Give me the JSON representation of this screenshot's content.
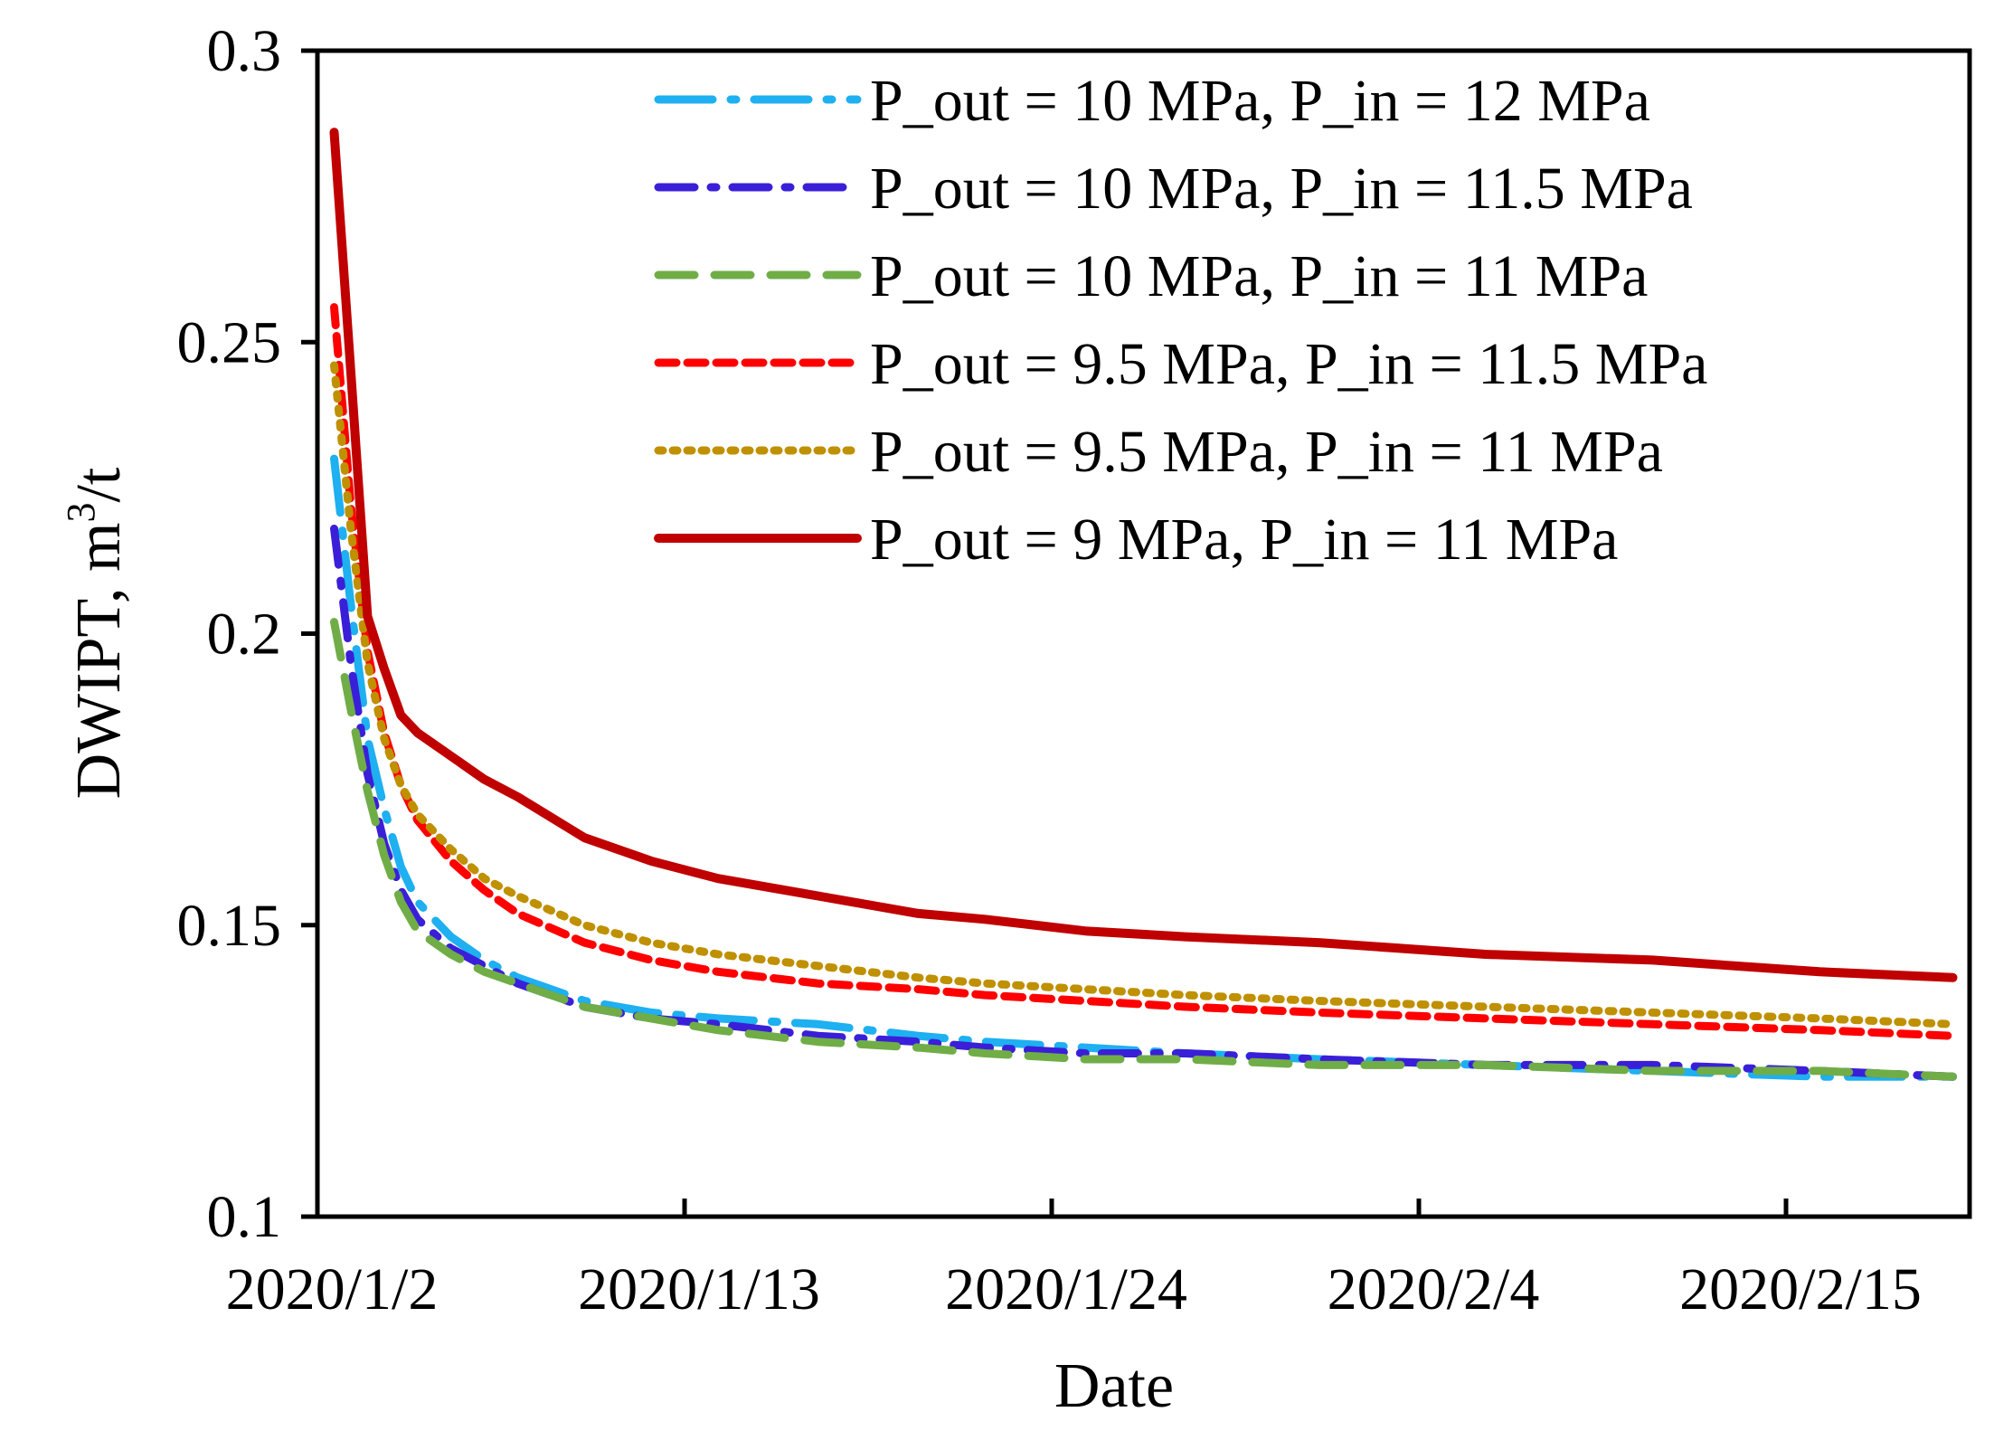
{
  "chart_data": {
    "type": "line",
    "title": "",
    "xlabel": "Date",
    "ylabel": "DWIPT, m",
    "ylabel_sup": "3",
    "ylabel_suffix": "/t",
    "ylim": [
      0.1,
      0.3
    ],
    "yticks": [
      "0.1",
      "0.15",
      "0.2",
      "0.25",
      "0.3"
    ],
    "xlim": [
      0,
      49.5
    ],
    "xticks": [
      {
        "day": 0,
        "label": "2020/1/2"
      },
      {
        "day": 11,
        "label": "2020/1/13"
      },
      {
        "day": 22,
        "label": "2020/1/24"
      },
      {
        "day": 33,
        "label": "2020/2/4"
      },
      {
        "day": 44,
        "label": "2020/2/15"
      }
    ],
    "grid": false,
    "legend_position": "top-right",
    "x": [
      0.5,
      1,
      1.5,
      2,
      2.5,
      3,
      4,
      5,
      6,
      8,
      10,
      12,
      15,
      18,
      20,
      23,
      26,
      30,
      35,
      40,
      45,
      49
    ],
    "series": [
      {
        "name": "P_out = 10 MPa, P_in = 12 MPa",
        "color": "#1EB0F0",
        "dash": "dashdot-long",
        "values": [
          0.23,
          0.205,
          0.182,
          0.17,
          0.16,
          0.154,
          0.148,
          0.144,
          0.141,
          0.137,
          0.135,
          0.134,
          0.133,
          0.131,
          0.13,
          0.129,
          0.128,
          0.127,
          0.126,
          0.125,
          0.124,
          0.124
        ]
      },
      {
        "name": "P_out = 10 MPa, P_in = 11.5 MPa",
        "color": "#3A1FD8",
        "dash": "dashdot",
        "values": [
          0.218,
          0.195,
          0.176,
          0.164,
          0.156,
          0.151,
          0.146,
          0.143,
          0.14,
          0.136,
          0.134,
          0.133,
          0.131,
          0.13,
          0.129,
          0.128,
          0.128,
          0.127,
          0.126,
          0.126,
          0.125,
          0.124
        ]
      },
      {
        "name": "P_out = 10 MPa, P_in = 11 MPa",
        "color": "#70AD47",
        "dash": "dash",
        "values": [
          0.202,
          0.187,
          0.173,
          0.162,
          0.154,
          0.149,
          0.145,
          0.142,
          0.14,
          0.136,
          0.134,
          0.132,
          0.13,
          0.129,
          0.128,
          0.127,
          0.127,
          0.126,
          0.126,
          0.125,
          0.125,
          0.124
        ]
      },
      {
        "name": "P_out = 9.5 MPa, P_in = 11.5 MPa",
        "color": "#FF0000",
        "dash": "shortdash",
        "values": [
          0.256,
          0.222,
          0.197,
          0.183,
          0.174,
          0.168,
          0.161,
          0.156,
          0.152,
          0.147,
          0.144,
          0.142,
          0.14,
          0.139,
          0.138,
          0.137,
          0.136,
          0.135,
          0.134,
          0.133,
          0.132,
          0.131
        ]
      },
      {
        "name": "P_out = 9.5 MPa, P_in = 11 MPa",
        "color": "#BF9000",
        "dash": "dot",
        "values": [
          0.246,
          0.218,
          0.195,
          0.182,
          0.174,
          0.169,
          0.163,
          0.158,
          0.155,
          0.15,
          0.147,
          0.145,
          0.143,
          0.141,
          0.14,
          0.139,
          0.138,
          0.137,
          0.136,
          0.135,
          0.134,
          0.133
        ]
      },
      {
        "name": "P_out = 9 MPa, P_in = 11 MPa",
        "color": "#C00000",
        "dash": "solid",
        "values": [
          0.286,
          0.245,
          0.203,
          0.194,
          0.186,
          0.183,
          0.179,
          0.175,
          0.172,
          0.165,
          0.161,
          0.158,
          0.155,
          0.152,
          0.151,
          0.149,
          0.148,
          0.147,
          0.145,
          0.144,
          0.142,
          0.141
        ]
      }
    ]
  }
}
